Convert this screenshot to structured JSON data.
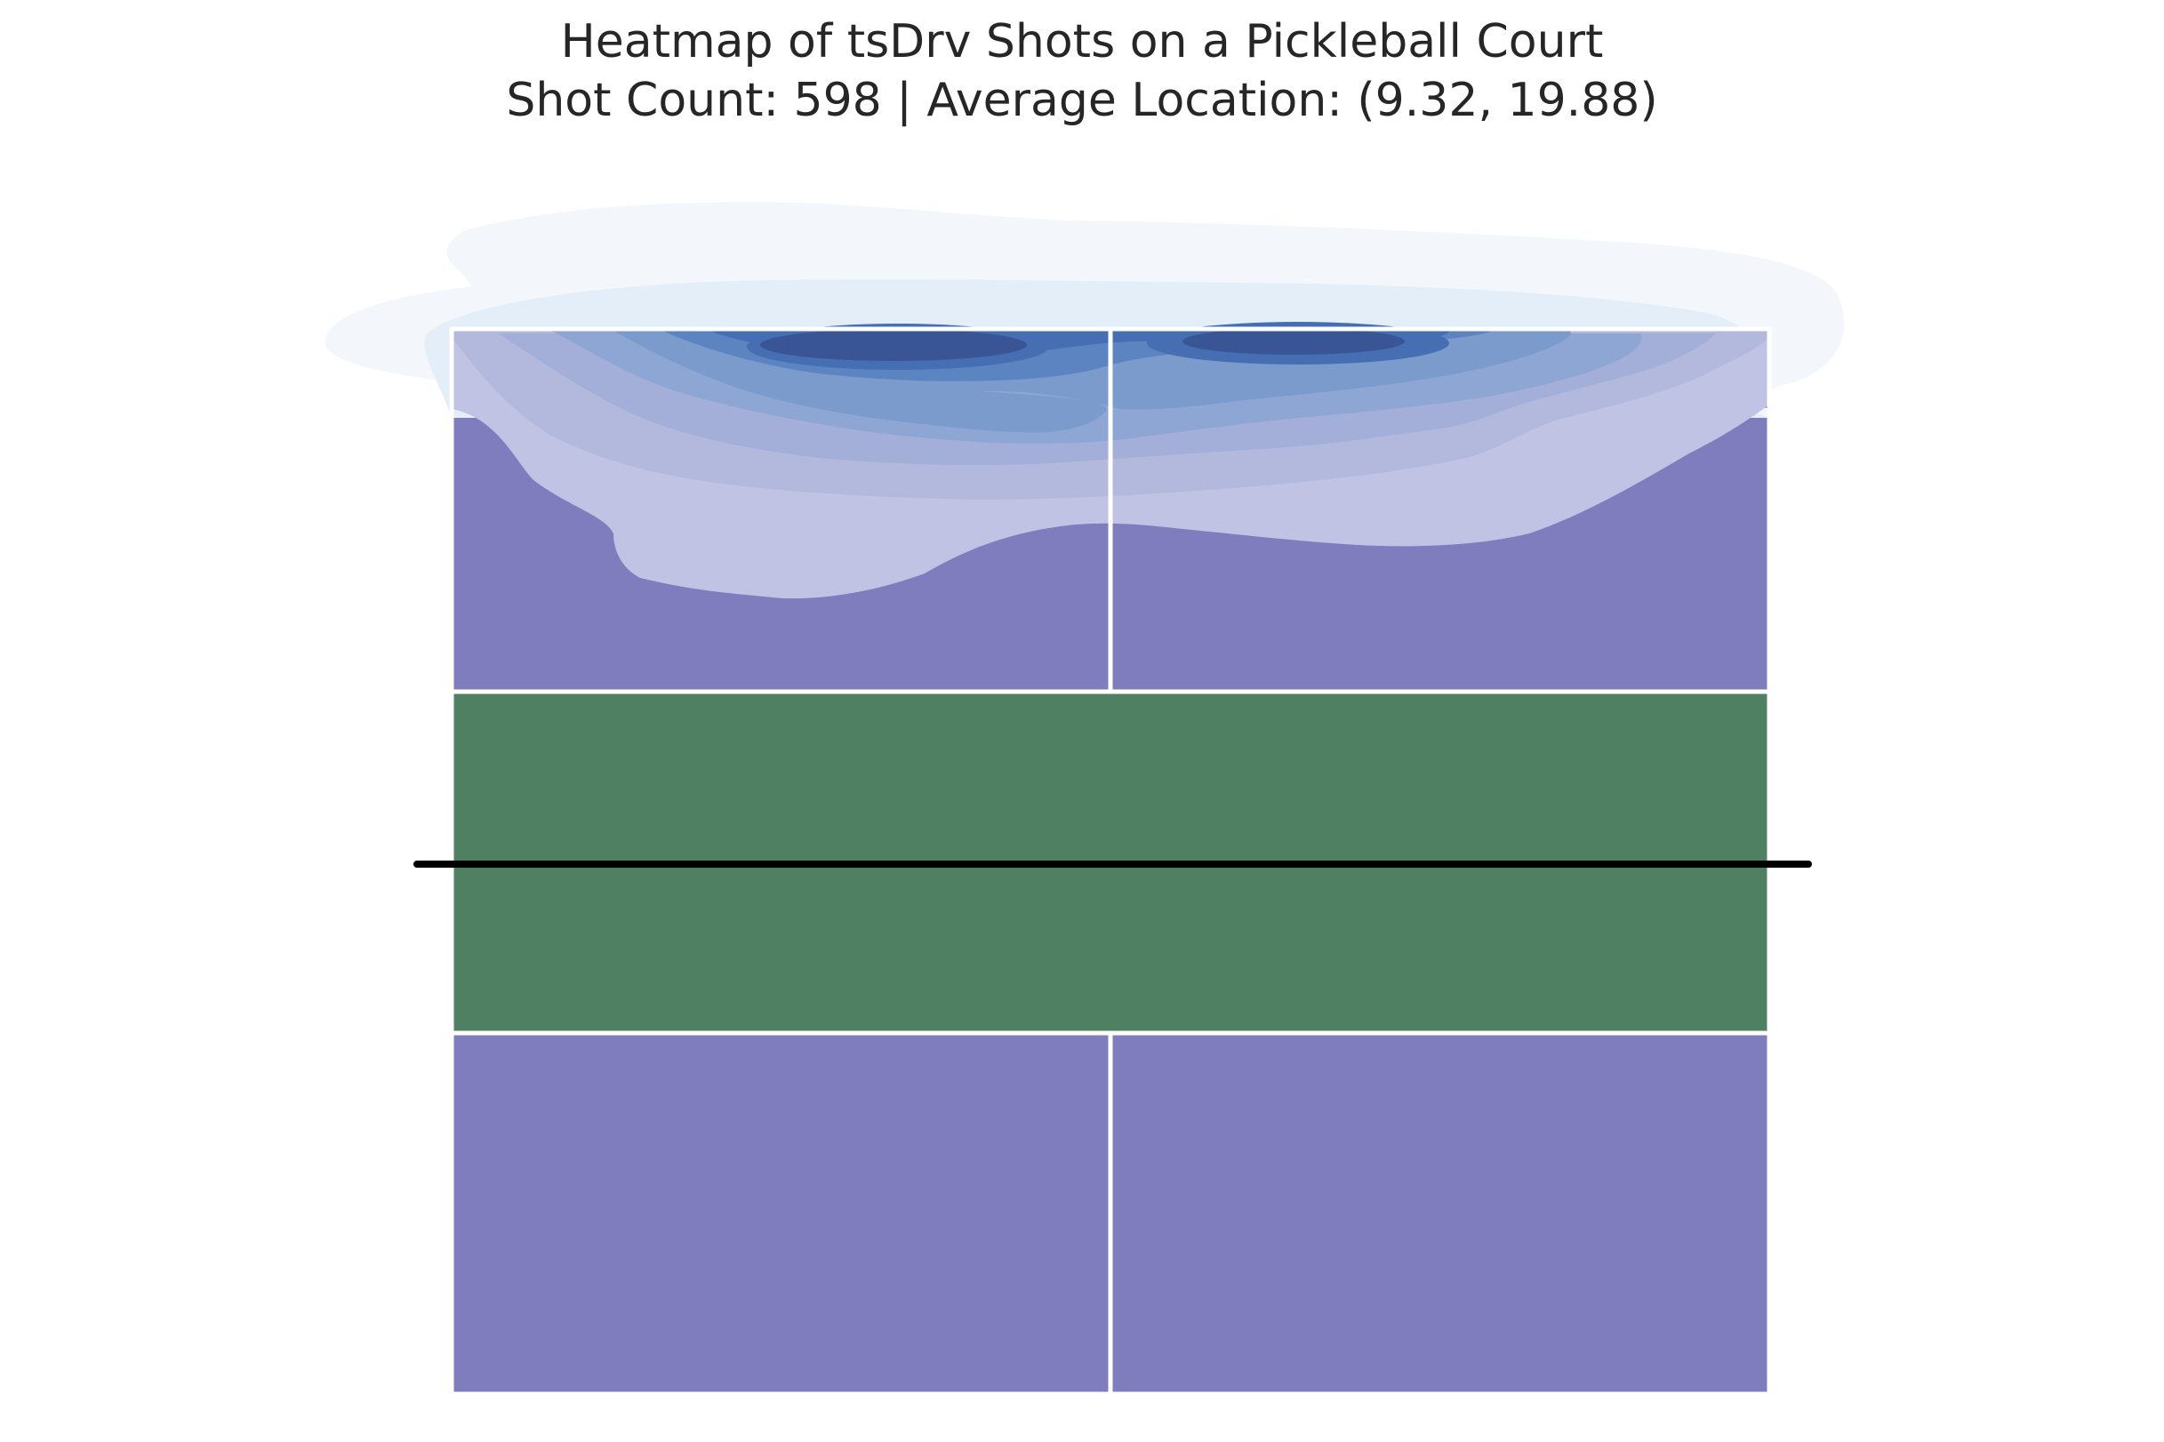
{
  "chart_data": {
    "type": "heatmap",
    "title": "Heatmap of tsDrv Shots on a Pickleball Court",
    "subtitle": "Shot Count: 598 | Average Location: (9.32, 19.88)",
    "shot_count": 598,
    "average_location": {
      "x": 9.32,
      "y": 19.88
    },
    "court": {
      "width_ft": 20,
      "length_ft": 44,
      "kitchen_depth_ft": 7,
      "net_y_ft": 22
    },
    "xlim": [
      -1.0,
      22.0
    ],
    "ylim": [
      -1.0,
      47.5
    ],
    "axes_visible": false,
    "grid": false,
    "density_peaks": [
      {
        "x": 6.8,
        "y": 42.5,
        "level": 1.0
      },
      {
        "x": 12.5,
        "y": 42.5,
        "level": 0.95
      }
    ],
    "colors": {
      "service_area": "#7f7dbd",
      "kitchen": "#508062",
      "court_lines": "#ffffff",
      "net": "#000000",
      "density_scale": [
        "#f3f7fc",
        "#e4eef8",
        "#cfe0f1",
        "#c0c8e5",
        "#b2b9dd",
        "#a3aed9",
        "#8ea6d4",
        "#7a9bcc",
        "#5b84c1",
        "#456fb2",
        "#3a5596"
      ]
    }
  }
}
